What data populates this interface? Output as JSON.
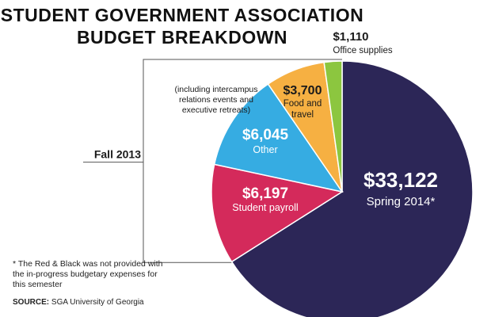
{
  "title_line1": "STUDENT GOVERNMENT ASSOCIATION",
  "title_line2": "BUDGET BREAKDOWN",
  "footnote": "* The Red & Black was not provided with the in-progress budgetary expenses for this semester",
  "source_label": "SOURCE:",
  "source_text": "SGA University of Georgia",
  "bracket_label": "Fall 2013",
  "chart_data": {
    "type": "pie",
    "title": "STUDENT GOVERNMENT ASSOCIATION BUDGET BREAKDOWN",
    "slices": [
      {
        "key": "spring",
        "value": 33122,
        "value_label": "$33,122",
        "label": "Spring 2014*",
        "color": "#2c2657"
      },
      {
        "key": "payroll",
        "value": 6197,
        "value_label": "$6,197",
        "label": "Student payroll",
        "color": "#d42a5b"
      },
      {
        "key": "other",
        "value": 6045,
        "value_label": "$6,045",
        "label": "Other",
        "color": "#36ace2"
      },
      {
        "key": "food",
        "value": 3700,
        "value_label": "$3,700",
        "label": "Food and travel",
        "color": "#f6b042"
      },
      {
        "key": "office",
        "value": 1110,
        "value_label": "$1,110",
        "label": "Office supplies",
        "color": "#8cc63f"
      }
    ],
    "annotations": {
      "other_note": [
        "(including intercampus",
        "relations events and",
        "executive retreats)"
      ],
      "food_label_lines": [
        "Food and",
        "travel"
      ]
    }
  }
}
